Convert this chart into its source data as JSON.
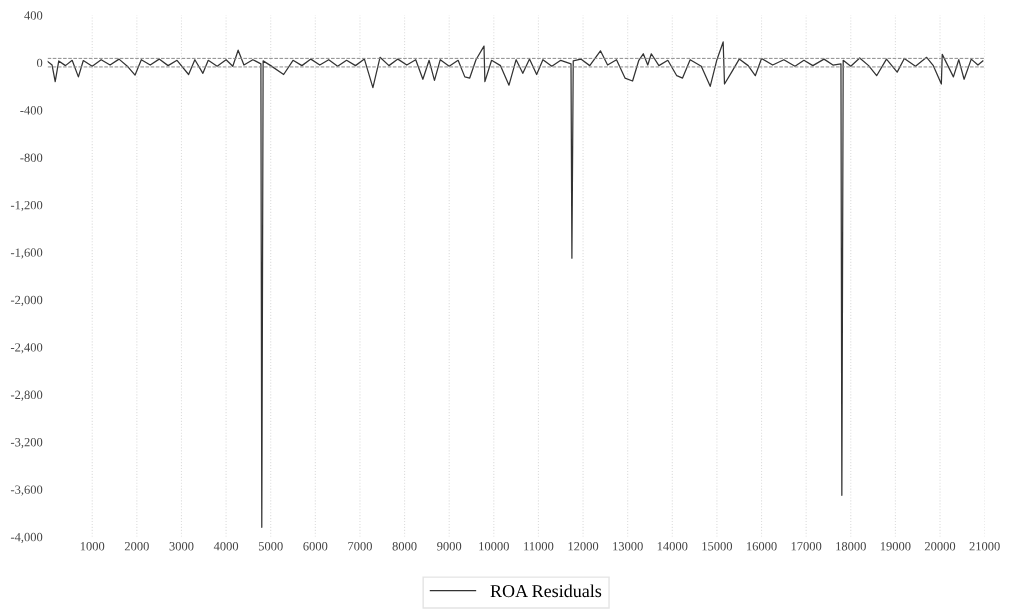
{
  "chart_data": {
    "type": "line",
    "legend": "bottom",
    "grid": "x",
    "line_style": "solid",
    "marker": "none",
    "xlim": [
      0,
      21000
    ],
    "xticks": [
      1000,
      2000,
      3000,
      4000,
      5000,
      6000,
      7000,
      8000,
      9000,
      10000,
      11000,
      12000,
      13000,
      14000,
      15000,
      16000,
      17000,
      18000,
      19000,
      20000,
      21000
    ],
    "ylim": [
      -4000,
      400
    ],
    "yticks": [
      400,
      0,
      -400,
      -800,
      {
        "value": -1200,
        "label": "-1,200"
      },
      {
        "value": -1600,
        "label": "-1,600"
      },
      {
        "value": -2000,
        "label": "-2,000"
      },
      {
        "value": -2400,
        "label": "-2,400"
      },
      {
        "value": -2800,
        "label": "-2,800"
      },
      {
        "value": -3200,
        "label": "-3,200"
      },
      {
        "value": -3600,
        "label": "-3,600"
      },
      {
        "value": -4000,
        "label": "-4,000"
      }
    ],
    "ref_lines": [
      {
        "axis": "y",
        "value": 36,
        "color": "#888888",
        "line_style": "dashed"
      },
      {
        "axis": "y",
        "value": -36,
        "color": "#888888",
        "line_style": "dashed"
      }
    ],
    "series": [
      {
        "name": "ROA Residuals",
        "color": "#333333",
        "x": [
          0,
          100,
          170,
          250,
          400,
          550,
          690,
          800,
          1000,
          1200,
          1400,
          1600,
          1800,
          1960,
          2100,
          2300,
          2500,
          2700,
          2900,
          3160,
          3300,
          3480,
          3600,
          3800,
          4000,
          4150,
          4270,
          4400,
          4600,
          4780,
          4800,
          4830,
          5000,
          5290,
          5500,
          5700,
          5900,
          6100,
          6300,
          6500,
          6700,
          6900,
          7100,
          7290,
          7450,
          7650,
          7850,
          8050,
          8250,
          8410,
          8550,
          8670,
          8800,
          9000,
          9200,
          9350,
          9460,
          9600,
          9780,
          9800,
          9950,
          10150,
          10340,
          10500,
          10650,
          10800,
          10960,
          11100,
          11300,
          11500,
          11730,
          11750,
          11780,
          11950,
          12150,
          12390,
          12550,
          12750,
          12940,
          13110,
          13250,
          13350,
          13450,
          13530,
          13700,
          13900,
          14100,
          14230,
          14400,
          14650,
          14850,
          15000,
          15140,
          15170,
          15330,
          15500,
          15700,
          15860,
          16000,
          16250,
          16500,
          16750,
          16950,
          17150,
          17400,
          17600,
          17780,
          17800,
          17830,
          18000,
          18200,
          18400,
          18580,
          18800,
          19040,
          19200,
          19450,
          19700,
          19850,
          20030,
          20050,
          20300,
          20420,
          20540,
          20700,
          20850,
          20960
        ],
        "values": [
          10,
          -20,
          -160,
          15,
          -25,
          20,
          -120,
          18,
          -30,
          25,
          -20,
          30,
          -35,
          -105,
          25,
          -20,
          30,
          -25,
          20,
          -100,
          25,
          -90,
          20,
          -30,
          25,
          -30,
          105,
          -20,
          25,
          -10,
          -3920,
          15,
          -25,
          -100,
          20,
          -25,
          30,
          -20,
          25,
          -30,
          20,
          -25,
          30,
          -210,
          45,
          -25,
          30,
          -20,
          25,
          -140,
          20,
          -150,
          25,
          -30,
          20,
          -120,
          -130,
          25,
          140,
          -160,
          20,
          -25,
          -190,
          25,
          -90,
          30,
          -100,
          25,
          -30,
          20,
          -10,
          -1650,
          15,
          30,
          -25,
          100,
          -20,
          25,
          -130,
          -155,
          20,
          75,
          -20,
          75,
          -25,
          20,
          -110,
          -130,
          25,
          -30,
          -200,
          25,
          175,
          -180,
          -80,
          30,
          -25,
          -110,
          35,
          -20,
          25,
          -30,
          20,
          -25,
          30,
          -20,
          -10,
          -3650,
          20,
          -30,
          40,
          -25,
          -110,
          30,
          -80,
          35,
          -30,
          45,
          -25,
          -180,
          70,
          -120,
          25,
          -140,
          30,
          -20,
          15
        ]
      }
    ]
  }
}
